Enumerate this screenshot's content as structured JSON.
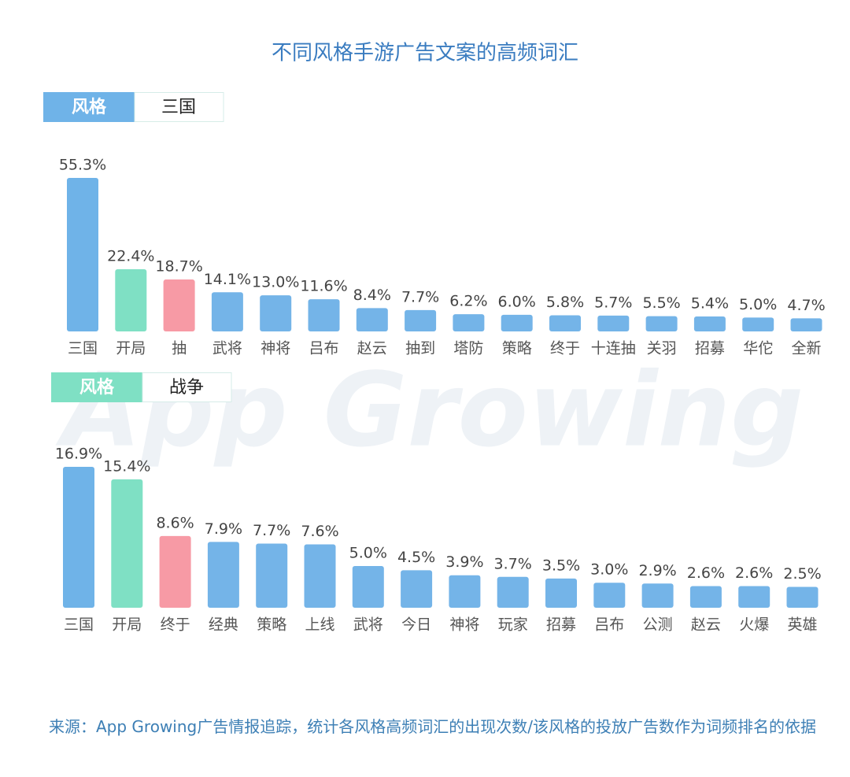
{
  "title": "不同风格手游广告文案的高频词汇",
  "watermark": "App Growing",
  "source": "来源：App Growing广告情报追踪，统计各风格高频词汇的出现次数/该风格的投放广告数作为词频排名的依据",
  "chart_data": [
    {
      "type": "bar",
      "tab": "风格",
      "name": "三国",
      "tab_color": "#6fb3e8",
      "categories": [
        "三国",
        "开局",
        "抽",
        "武将",
        "神将",
        "吕布",
        "赵云",
        "抽到",
        "塔防",
        "策略",
        "终于",
        "十连抽",
        "关羽",
        "招募",
        "华佗",
        "全新"
      ],
      "values": [
        55.3,
        22.4,
        18.7,
        14.1,
        13.0,
        11.6,
        8.4,
        7.7,
        6.2,
        6.0,
        5.8,
        5.7,
        5.5,
        5.4,
        5.0,
        4.7
      ],
      "value_labels": [
        "55.3%",
        "22.4%",
        "18.7%",
        "14.1%",
        "13.0%",
        "11.6%",
        "8.4%",
        "7.7%",
        "6.2%",
        "6.0%",
        "5.8%",
        "5.7%",
        "5.5%",
        "5.4%",
        "5.0%",
        "4.7%"
      ],
      "colors": [
        "#6fb3e8",
        "#7fe0c4",
        "#f79aa5",
        "#74b4e8",
        "#74b4e8",
        "#74b4e8",
        "#74b4e8",
        "#74b4e8",
        "#74b4e8",
        "#74b4e8",
        "#74b4e8",
        "#74b4e8",
        "#74b4e8",
        "#74b4e8",
        "#74b4e8",
        "#74b4e8"
      ]
    },
    {
      "type": "bar",
      "tab": "风格",
      "name": "战争",
      "tab_color": "#7fe0c4",
      "categories": [
        "三国",
        "开局",
        "终于",
        "经典",
        "策略",
        "上线",
        "武将",
        "今日",
        "神将",
        "玩家",
        "招募",
        "吕布",
        "公测",
        "赵云",
        "火爆",
        "英雄"
      ],
      "values": [
        16.9,
        15.4,
        8.6,
        7.9,
        7.7,
        7.6,
        5.0,
        4.5,
        3.9,
        3.7,
        3.5,
        3.0,
        2.9,
        2.6,
        2.6,
        2.5
      ],
      "value_labels": [
        "16.9%",
        "15.4%",
        "8.6%",
        "7.9%",
        "7.7%",
        "7.6%",
        "5.0%",
        "4.5%",
        "3.9%",
        "3.7%",
        "3.5%",
        "3.0%",
        "2.9%",
        "2.6%",
        "2.6%",
        "2.5%"
      ],
      "colors": [
        "#6fb3e8",
        "#7fe0c4",
        "#f79aa5",
        "#74b4e8",
        "#74b4e8",
        "#74b4e8",
        "#74b4e8",
        "#74b4e8",
        "#74b4e8",
        "#74b4e8",
        "#74b4e8",
        "#74b4e8",
        "#74b4e8",
        "#74b4e8",
        "#74b4e8",
        "#74b4e8"
      ]
    }
  ]
}
